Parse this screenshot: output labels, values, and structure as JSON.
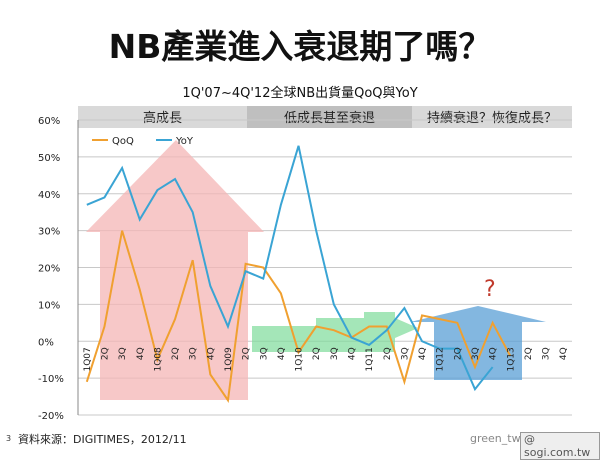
{
  "title": "NB產業進入衰退期了嗎？",
  "footer": {
    "page_number": "3",
    "source": "資料來源：DIGITIMES，2012/11",
    "watermark_left": "green_tw",
    "watermark_right": "@ sogi.com.tw"
  },
  "chart_data": {
    "type": "line",
    "title": "1Q'07~4Q'12全球NB出貨量QoQ與YoY",
    "phases": [
      {
        "label": "高成長",
        "color": "#d9d9d9"
      },
      {
        "label": "低成長甚至衰退",
        "color": "#bfbfbf"
      },
      {
        "label": "持續衰退？恢復成長？",
        "color": "#d9d9d9"
      }
    ],
    "question_mark": "?",
    "question_color": "#c0392b",
    "x_labels": [
      "1Q07",
      "2Q",
      "3Q",
      "4Q",
      "1Q08",
      "2Q",
      "3Q",
      "4Q",
      "1Q09",
      "2Q",
      "3Q",
      "4Q",
      "1Q10",
      "2Q",
      "3Q",
      "4Q",
      "1Q11",
      "2Q",
      "3Q",
      "4Q",
      "1Q12",
      "2Q",
      "3Q",
      "4Q",
      "1Q13",
      "2Q",
      "3Q",
      "4Q"
    ],
    "y_ticks": [
      "60%",
      "50%",
      "40%",
      "30%",
      "20%",
      "10%",
      "0%",
      "-10%",
      "-20%"
    ],
    "ylim": [
      -20,
      60
    ],
    "series": [
      {
        "name": "QoQ",
        "color": "#f0a030",
        "values": [
          -11,
          4,
          30,
          14,
          -5,
          6,
          22,
          -9,
          -16,
          21,
          20,
          13,
          -3,
          4,
          3,
          1,
          4,
          4,
          -11,
          7,
          6,
          5,
          -7,
          5,
          -4,
          null,
          null,
          null
        ]
      },
      {
        "name": "YoY",
        "color": "#3aa4d4",
        "values": [
          37,
          39,
          47,
          33,
          41,
          44,
          35,
          15,
          4,
          19,
          17,
          37,
          53,
          30,
          10,
          1,
          -1,
          3,
          9,
          0,
          -2,
          -2,
          -13,
          -7,
          null,
          null,
          null,
          null
        ]
      }
    ],
    "grid": true,
    "legend": "top-left"
  }
}
